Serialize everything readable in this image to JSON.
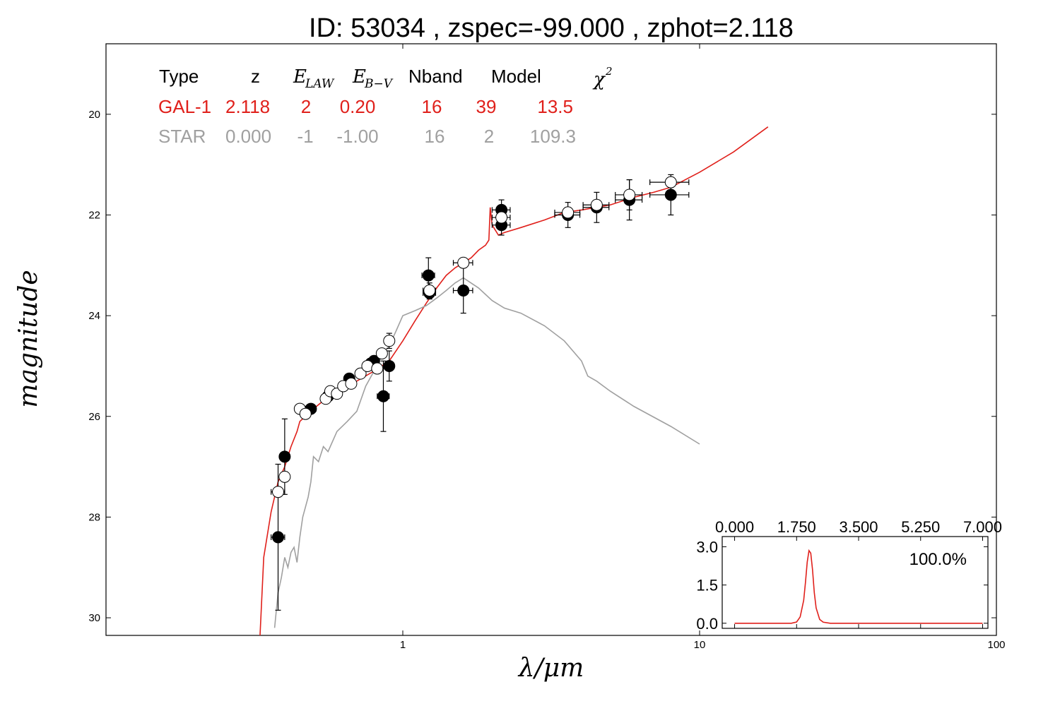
{
  "chart_data": [
    {
      "type": "scatter",
      "title": "ID:  53034 , zspec=-99.000 , zphot=2.118",
      "xlabel": "λ/μm",
      "ylabel": "magnitude",
      "xscale": "log",
      "xlim": [
        0.1,
        100
      ],
      "ylim": [
        30.35,
        18.6
      ],
      "y_inverted": true,
      "x_ticks": [
        "1",
        "10",
        "100"
      ],
      "x_tick_values": [
        1,
        10,
        100
      ],
      "y_ticks": [
        "20",
        "22",
        "24",
        "26",
        "28",
        "30"
      ],
      "y_tick_values": [
        20,
        22,
        24,
        26,
        28,
        30
      ],
      "table": {
        "headers": [
          "Type",
          "z",
          "E_LAW",
          "E_B-V",
          "Nband",
          "Model",
          "χ²"
        ],
        "rows": [
          {
            "color": "#e0201b",
            "cells": [
              "GAL-1",
              "2.118",
              "2",
              "0.20",
              "16",
              "39",
              "13.5"
            ]
          },
          {
            "color": "#a0a0a0",
            "cells": [
              "STAR",
              "0.000",
              "-1",
              "-1.00",
              "16",
              "2",
              "109.3"
            ]
          }
        ]
      },
      "series": [
        {
          "name": "GAL-1",
          "kind": "line",
          "color": "#e0201b",
          "x": [
            0.33,
            0.34,
            0.36,
            0.38,
            0.4,
            0.42,
            0.44,
            0.45,
            0.5,
            0.55,
            0.6,
            0.7,
            0.8,
            0.9,
            1.0,
            1.1,
            1.2,
            1.3,
            1.4,
            1.5,
            1.6,
            1.7,
            1.8,
            1.9,
            1.95,
            1.97,
            2.0,
            2.05,
            2.1,
            2.2,
            2.5,
            3.0,
            3.5,
            4.0,
            5.0,
            6.0,
            7.0,
            8.0,
            10.0,
            13.0,
            17.0
          ],
          "y": [
            30.4,
            28.8,
            27.9,
            27.3,
            27.0,
            26.6,
            26.3,
            26.1,
            25.85,
            25.65,
            25.5,
            25.3,
            25.1,
            24.9,
            24.5,
            24.1,
            23.75,
            23.45,
            23.2,
            23.05,
            22.95,
            22.85,
            22.7,
            22.6,
            22.5,
            21.85,
            22.2,
            22.3,
            22.4,
            22.35,
            22.25,
            22.1,
            21.95,
            21.9,
            21.8,
            21.65,
            21.55,
            21.45,
            21.15,
            20.75,
            20.25
          ]
        },
        {
          "name": "STAR",
          "kind": "line",
          "color": "#a0a0a0",
          "x": [
            0.37,
            0.38,
            0.39,
            0.4,
            0.41,
            0.42,
            0.43,
            0.44,
            0.45,
            0.46,
            0.47,
            0.48,
            0.49,
            0.5,
            0.52,
            0.54,
            0.56,
            0.6,
            0.65,
            0.7,
            0.75,
            0.8,
            0.85,
            0.9,
            0.95,
            1.0,
            1.1,
            1.2,
            1.3,
            1.4,
            1.5,
            1.6,
            1.8,
            2.0,
            2.2,
            2.5,
            3.0,
            3.5,
            4.0,
            4.2,
            4.5,
            5.0,
            6.0,
            8.0,
            10.0
          ],
          "y": [
            30.2,
            29.5,
            29.2,
            28.8,
            29.0,
            28.7,
            28.6,
            28.9,
            28.4,
            28.0,
            27.8,
            27.6,
            27.3,
            26.8,
            26.9,
            26.6,
            26.7,
            26.3,
            26.1,
            25.9,
            25.4,
            25.1,
            24.8,
            24.6,
            24.3,
            24.0,
            23.9,
            23.8,
            23.65,
            23.5,
            23.35,
            23.25,
            23.45,
            23.7,
            23.85,
            23.95,
            24.2,
            24.5,
            24.9,
            25.2,
            25.3,
            25.5,
            25.8,
            26.2,
            26.55
          ]
        },
        {
          "name": "filled",
          "kind": "points-filled",
          "color": "#000000",
          "points": [
            {
              "x": 0.38,
              "y": 28.4,
              "xerr": 0.02,
              "yerr": 1.45
            },
            {
              "x": 0.4,
              "y": 26.8,
              "xerr": 0.01,
              "yerr": 0.75
            },
            {
              "x": 0.49,
              "y": 25.85,
              "xerr": 0.02,
              "yerr": 0.08
            },
            {
              "x": 0.56,
              "y": 25.6,
              "xerr": 0.02,
              "yerr": 0.08
            },
            {
              "x": 0.66,
              "y": 25.25,
              "xerr": 0.02,
              "yerr": 0.08
            },
            {
              "x": 0.78,
              "y": 24.95,
              "xerr": 0.02,
              "yerr": 0.1
            },
            {
              "x": 0.8,
              "y": 24.9,
              "xerr": 0.02,
              "yerr": 0.1
            },
            {
              "x": 0.86,
              "y": 25.6,
              "xerr": 0.04,
              "yerr": 0.7
            },
            {
              "x": 0.9,
              "y": 25.0,
              "xerr": 0.03,
              "yerr": 0.3
            },
            {
              "x": 1.22,
              "y": 23.2,
              "xerr": 0.06,
              "yerr": 0.35
            },
            {
              "x": 1.23,
              "y": 23.55,
              "xerr": 0.06,
              "yerr": 0.12
            },
            {
              "x": 1.6,
              "y": 23.5,
              "xerr": 0.12,
              "yerr": 0.45
            },
            {
              "x": 2.15,
              "y": 21.9,
              "xerr": 0.15,
              "yerr": 0.2
            },
            {
              "x": 2.15,
              "y": 22.2,
              "xerr": 0.15,
              "yerr": 0.2
            },
            {
              "x": 3.6,
              "y": 22.0,
              "xerr": 0.35,
              "yerr": 0.25
            },
            {
              "x": 4.5,
              "y": 21.85,
              "xerr": 0.45,
              "yerr": 0.3
            },
            {
              "x": 5.8,
              "y": 21.7,
              "xerr": 0.6,
              "yerr": 0.4
            },
            {
              "x": 8.0,
              "y": 21.6,
              "xerr": 1.2,
              "yerr": 0.4
            }
          ]
        },
        {
          "name": "open",
          "kind": "points-open",
          "color": "#000000",
          "points": [
            {
              "x": 0.38,
              "y": 27.5,
              "xerr": 0.02,
              "yerr": 0.1
            },
            {
              "x": 0.4,
              "y": 27.2,
              "xerr": 0.01,
              "yerr": 0.1
            },
            {
              "x": 0.45,
              "y": 25.85,
              "xerr": 0.01,
              "yerr": 0.05
            },
            {
              "x": 0.47,
              "y": 25.95,
              "xerr": 0.01,
              "yerr": 0.05
            },
            {
              "x": 0.55,
              "y": 25.65,
              "xerr": 0.01,
              "yerr": 0.05
            },
            {
              "x": 0.57,
              "y": 25.5,
              "xerr": 0.01,
              "yerr": 0.05
            },
            {
              "x": 0.6,
              "y": 25.55,
              "xerr": 0.01,
              "yerr": 0.05
            },
            {
              "x": 0.63,
              "y": 25.4,
              "xerr": 0.01,
              "yerr": 0.05
            },
            {
              "x": 0.67,
              "y": 25.35,
              "xerr": 0.01,
              "yerr": 0.05
            },
            {
              "x": 0.72,
              "y": 25.15,
              "xerr": 0.01,
              "yerr": 0.05
            },
            {
              "x": 0.76,
              "y": 25.0,
              "xerr": 0.01,
              "yerr": 0.05
            },
            {
              "x": 0.82,
              "y": 25.05,
              "xerr": 0.01,
              "yerr": 0.05
            },
            {
              "x": 0.85,
              "y": 24.75,
              "xerr": 0.02,
              "yerr": 0.05
            },
            {
              "x": 0.9,
              "y": 24.5,
              "xerr": 0.02,
              "yerr": 0.15
            },
            {
              "x": 1.23,
              "y": 23.5,
              "xerr": 0.06,
              "yerr": 0.15
            },
            {
              "x": 1.6,
              "y": 22.95,
              "xerr": 0.12,
              "yerr": 0.05
            },
            {
              "x": 2.15,
              "y": 22.05,
              "xerr": 0.15,
              "yerr": 0.05
            },
            {
              "x": 3.6,
              "y": 21.95,
              "xerr": 0.35,
              "yerr": 0.1
            },
            {
              "x": 4.5,
              "y": 21.8,
              "xerr": 0.45,
              "yerr": 0.1
            },
            {
              "x": 5.8,
              "y": 21.6,
              "xerr": 0.6,
              "yerr": 0.3
            },
            {
              "x": 8.0,
              "y": 21.35,
              "xerr": 1.2,
              "yerr": 0.1
            }
          ]
        }
      ]
    },
    {
      "type": "line",
      "name": "inset",
      "xlim": [
        -0.35,
        7.15
      ],
      "ylim": [
        -0.2,
        3.4
      ],
      "x_ticks": [
        "0.000",
        "1.750",
        "3.500",
        "5.250",
        "7.000"
      ],
      "x_tick_values": [
        0,
        1.75,
        3.5,
        5.25,
        7.0
      ],
      "y_ticks": [
        "0.0",
        "1.5",
        "3.0"
      ],
      "y_tick_values": [
        0,
        1.5,
        3.0
      ],
      "annotation": "100.0%",
      "series": [
        {
          "color": "#e0201b",
          "x": [
            0.0,
            1.6,
            1.75,
            1.85,
            1.95,
            2.0,
            2.05,
            2.1,
            2.15,
            2.2,
            2.25,
            2.3,
            2.4,
            2.5,
            2.7,
            3.5,
            5.25,
            7.0
          ],
          "y": [
            0.0,
            0.0,
            0.05,
            0.25,
            0.9,
            1.6,
            2.4,
            2.85,
            2.75,
            2.1,
            1.2,
            0.6,
            0.15,
            0.04,
            0.0,
            0.0,
            0.0,
            0.0
          ]
        }
      ]
    }
  ]
}
